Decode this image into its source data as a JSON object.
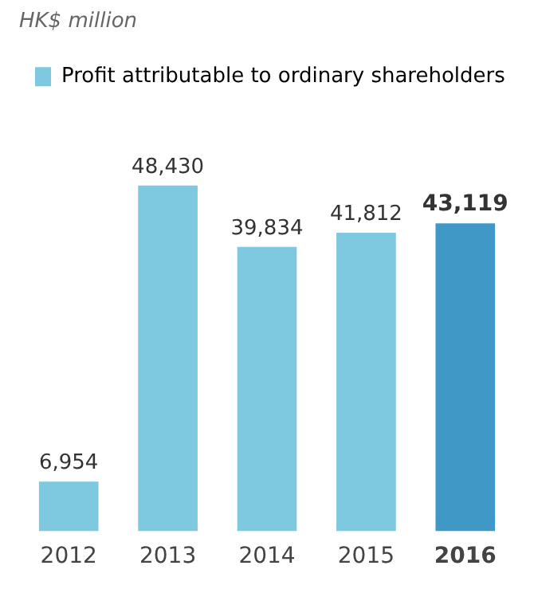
{
  "chart_data": {
    "type": "bar",
    "annotations": [
      "HK$ million"
    ],
    "categories": [
      "2012",
      "2013",
      "2014",
      "2015",
      "2016"
    ],
    "series": [
      {
        "name": "Profit attributable to ordinary shareholders",
        "color": "#7ec8e0",
        "colors": [
          "#7ec8e0",
          "#7ec8e0",
          "#7ec8e0",
          "#7ec8e0",
          "#3f98c6"
        ],
        "values": [
          6954,
          48430,
          39834,
          41812,
          43119
        ],
        "value_labels": [
          "6,954",
          "48,430",
          "39,834",
          "41,812",
          "43,119"
        ]
      }
    ],
    "legend": "top left",
    "tick_labels": "x",
    "grid": false
  }
}
